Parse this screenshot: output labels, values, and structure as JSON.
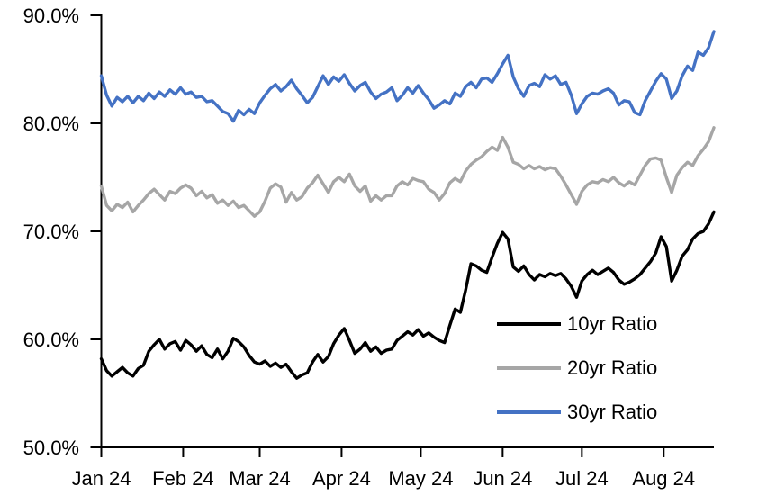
{
  "chart_data": {
    "type": "line",
    "title": "",
    "xlabel": "",
    "ylabel": "",
    "grid": false,
    "legend_position": "inside-lower-right",
    "x_axis": {
      "range_days": [
        0,
        232
      ],
      "tick_days": [
        0,
        31,
        60,
        91,
        121,
        152,
        182,
        213
      ],
      "tick_labels": [
        "Jan 24",
        "Feb 24",
        "Mar 24",
        "Apr 24",
        "May 24",
        "Jun 24",
        "Jul 24",
        "Aug 24"
      ]
    },
    "y_axis": {
      "min": 50,
      "max": 90,
      "tick_step": 10,
      "tick_labels": [
        "50.0%",
        "60.0%",
        "70.0%",
        "80.0%",
        "90.0%"
      ]
    },
    "ylim": [
      50,
      90
    ],
    "sample_step_days": 2,
    "axis_color": "#000000",
    "series": [
      {
        "name": "10yr Ratio",
        "color": "#000000",
        "values": [
          58.2,
          57.1,
          56.6,
          57.0,
          57.4,
          56.9,
          56.6,
          57.3,
          57.6,
          58.9,
          59.5,
          60.0,
          59.1,
          59.6,
          59.8,
          59.0,
          59.9,
          59.5,
          58.9,
          59.4,
          58.6,
          58.3,
          59.1,
          58.2,
          58.9,
          60.1,
          59.8,
          59.3,
          58.5,
          57.9,
          57.7,
          58.0,
          57.5,
          57.8,
          57.4,
          57.7,
          57.0,
          56.4,
          56.7,
          56.9,
          57.9,
          58.6,
          57.9,
          58.4,
          59.6,
          60.4,
          61.0,
          59.9,
          58.7,
          59.1,
          59.7,
          58.9,
          59.3,
          58.7,
          59.0,
          59.1,
          59.9,
          60.3,
          60.7,
          60.4,
          60.9,
          60.3,
          60.6,
          60.2,
          59.9,
          59.7,
          61.3,
          62.8,
          62.5,
          64.6,
          67.0,
          66.8,
          66.4,
          66.2,
          67.6,
          68.9,
          69.9,
          69.3,
          66.7,
          66.3,
          66.8,
          66.0,
          65.5,
          66.0,
          65.8,
          66.1,
          65.9,
          66.1,
          65.6,
          64.9,
          63.9,
          65.4,
          66.0,
          66.4,
          66.0,
          66.3,
          66.6,
          66.2,
          65.5,
          65.1,
          65.3,
          65.6,
          66.0,
          66.6,
          67.2,
          68.0,
          69.5,
          68.6,
          65.4,
          66.4,
          67.7,
          68.3,
          69.3,
          69.8,
          70.0,
          70.7,
          71.8
        ]
      },
      {
        "name": "20yr Ratio",
        "color": "#A6A6A6",
        "values": [
          74.2,
          72.4,
          71.9,
          72.5,
          72.2,
          72.7,
          71.8,
          72.4,
          72.9,
          73.5,
          73.9,
          73.4,
          72.9,
          73.7,
          73.5,
          74.0,
          74.3,
          74.0,
          73.3,
          73.7,
          73.1,
          73.4,
          72.6,
          72.9,
          72.4,
          72.8,
          72.2,
          72.4,
          71.9,
          71.4,
          71.8,
          72.8,
          74.0,
          74.4,
          74.1,
          72.7,
          73.6,
          72.9,
          73.2,
          74.0,
          74.5,
          75.2,
          74.4,
          73.6,
          74.6,
          75.0,
          74.6,
          75.3,
          74.2,
          73.7,
          74.2,
          72.8,
          73.3,
          72.9,
          73.3,
          73.3,
          74.2,
          74.6,
          74.3,
          74.9,
          74.7,
          74.6,
          73.9,
          73.6,
          72.9,
          73.5,
          74.5,
          74.9,
          74.6,
          75.6,
          76.2,
          76.6,
          76.9,
          77.4,
          77.8,
          77.5,
          78.7,
          77.8,
          76.4,
          76.2,
          75.8,
          76.1,
          75.8,
          76.0,
          75.7,
          75.9,
          75.8,
          75.1,
          74.3,
          73.4,
          72.5,
          73.7,
          74.3,
          74.6,
          74.5,
          74.8,
          74.6,
          75.0,
          74.5,
          74.2,
          74.6,
          74.3,
          75.2,
          76.1,
          76.7,
          76.8,
          76.6,
          75.0,
          73.6,
          75.2,
          75.9,
          76.4,
          76.1,
          77.0,
          77.6,
          78.3,
          79.6
        ]
      },
      {
        "name": "30yr Ratio",
        "color": "#4472C4",
        "values": [
          84.4,
          82.6,
          81.6,
          82.4,
          82.0,
          82.5,
          81.9,
          82.5,
          82.1,
          82.8,
          82.3,
          82.9,
          82.5,
          83.1,
          82.7,
          83.3,
          82.7,
          82.9,
          82.4,
          82.5,
          82.0,
          82.1,
          81.6,
          81.1,
          80.9,
          80.2,
          81.2,
          80.8,
          81.3,
          80.9,
          81.9,
          82.6,
          83.2,
          83.6,
          83.0,
          83.4,
          84.0,
          83.2,
          82.6,
          81.9,
          82.4,
          83.4,
          84.4,
          83.6,
          84.3,
          83.9,
          84.5,
          83.7,
          83.0,
          83.5,
          83.8,
          82.9,
          82.3,
          82.7,
          82.9,
          83.3,
          82.1,
          82.6,
          83.3,
          82.8,
          83.5,
          82.8,
          82.2,
          81.4,
          81.7,
          82.1,
          81.8,
          82.8,
          82.5,
          83.4,
          83.8,
          83.3,
          84.1,
          84.2,
          83.8,
          84.6,
          85.5,
          86.3,
          84.3,
          83.2,
          82.5,
          83.5,
          83.7,
          83.4,
          84.5,
          84.1,
          84.4,
          83.6,
          83.8,
          82.6,
          80.9,
          81.8,
          82.5,
          82.8,
          82.7,
          83.0,
          83.2,
          82.8,
          81.7,
          82.1,
          82.0,
          81.0,
          80.8,
          82.1,
          83.0,
          83.9,
          84.6,
          84.1,
          82.3,
          83.0,
          84.4,
          85.3,
          84.9,
          86.6,
          86.3,
          87.0,
          88.5
        ]
      }
    ]
  }
}
